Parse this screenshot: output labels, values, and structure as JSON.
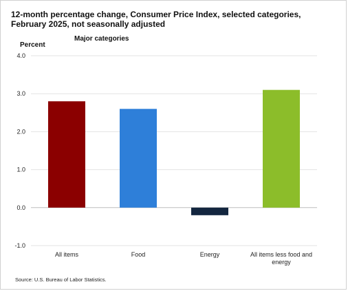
{
  "chart_data": {
    "type": "bar",
    "title": "12-month percentage change, Consumer Price Index, selected categories, February 2025, not seasonally adjusted",
    "subtitle": "Major categories",
    "ylabel": "Percent",
    "xlabel": "",
    "categories": [
      "All items",
      "Food",
      "Energy",
      "All items less food and energy"
    ],
    "values": [
      2.8,
      2.6,
      -0.2,
      3.1
    ],
    "colors": [
      "#8b0000",
      "#2e7fd9",
      "#13263f",
      "#8cbd2a"
    ],
    "ylim": [
      -1.0,
      4.0
    ],
    "yticks": [
      -1.0,
      0.0,
      1.0,
      2.0,
      3.0,
      4.0
    ],
    "ytick_labels": [
      "-1.0",
      "0.0",
      "1.0",
      "2.0",
      "3.0",
      "4.0"
    ],
    "grid": true,
    "legend": "none"
  },
  "source": "Source: U.S. Bureau of Labor Statistics."
}
